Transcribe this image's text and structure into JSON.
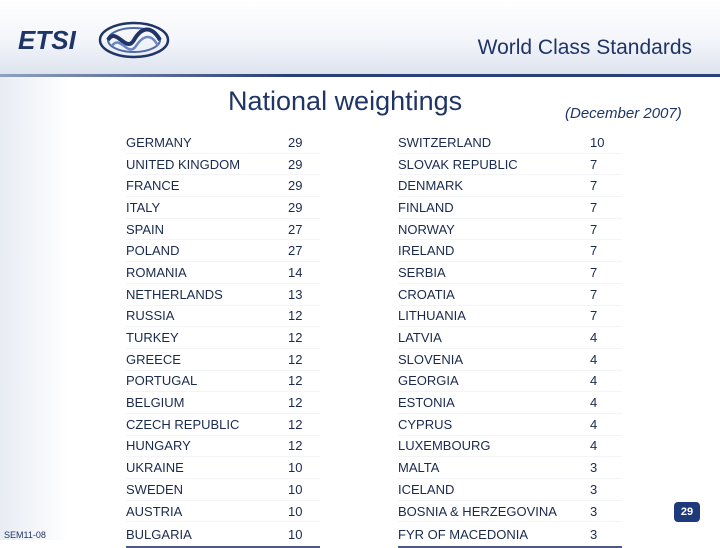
{
  "header": {
    "logo_text": "ETSI",
    "tagline": "World Class Standards"
  },
  "title": "National weightings",
  "date_note": "(December 2007)",
  "left_table": [
    {
      "country": "GERMANY",
      "weight": "29"
    },
    {
      "country": "UNITED KINGDOM",
      "weight": "29"
    },
    {
      "country": "FRANCE",
      "weight": "29"
    },
    {
      "country": "ITALY",
      "weight": "29"
    },
    {
      "country": "SPAIN",
      "weight": "27"
    },
    {
      "country": "POLAND",
      "weight": "27"
    },
    {
      "country": "ROMANIA",
      "weight": "14"
    },
    {
      "country": "NETHERLANDS",
      "weight": "13"
    },
    {
      "country": "RUSSIA",
      "weight": "12"
    },
    {
      "country": "TURKEY",
      "weight": "12"
    },
    {
      "country": "GREECE",
      "weight": "12"
    },
    {
      "country": "PORTUGAL",
      "weight": "12"
    },
    {
      "country": "BELGIUM",
      "weight": "12"
    },
    {
      "country": "CZECH REPUBLIC",
      "weight": "12"
    },
    {
      "country": "HUNGARY",
      "weight": "12"
    },
    {
      "country": "UKRAINE",
      "weight": "10"
    },
    {
      "country": "SWEDEN",
      "weight": "10"
    },
    {
      "country": "AUSTRIA",
      "weight": "10"
    },
    {
      "country": "BULGARIA",
      "weight": "10"
    }
  ],
  "right_table": [
    {
      "country": "SWITZERLAND",
      "weight": "10"
    },
    {
      "country": "SLOVAK REPUBLIC",
      "weight": "7"
    },
    {
      "country": "DENMARK",
      "weight": "7"
    },
    {
      "country": "FINLAND",
      "weight": "7"
    },
    {
      "country": "NORWAY",
      "weight": "7"
    },
    {
      "country": "IRELAND",
      "weight": "7"
    },
    {
      "country": "SERBIA",
      "weight": "7"
    },
    {
      "country": "CROATIA",
      "weight": "7"
    },
    {
      "country": "LITHUANIA",
      "weight": "7"
    },
    {
      "country": "LATVIA",
      "weight": "4"
    },
    {
      "country": "SLOVENIA",
      "weight": "4"
    },
    {
      "country": "GEORGIA",
      "weight": "4"
    },
    {
      "country": "ESTONIA",
      "weight": "4"
    },
    {
      "country": "CYPRUS",
      "weight": "4"
    },
    {
      "country": "LUXEMBOURG",
      "weight": "4"
    },
    {
      "country": "MALTA",
      "weight": "3"
    },
    {
      "country": "ICELAND",
      "weight": "3"
    },
    {
      "country": "BOSNIA & HERZEGOVINA",
      "weight": "3"
    },
    {
      "country": "FYR OF MACEDONIA",
      "weight": "3"
    }
  ],
  "footer": {
    "slide_code": "SEM11-08",
    "page_number": "29"
  },
  "colors": {
    "brand": "#1f3566",
    "accent": "#2b3f78"
  }
}
